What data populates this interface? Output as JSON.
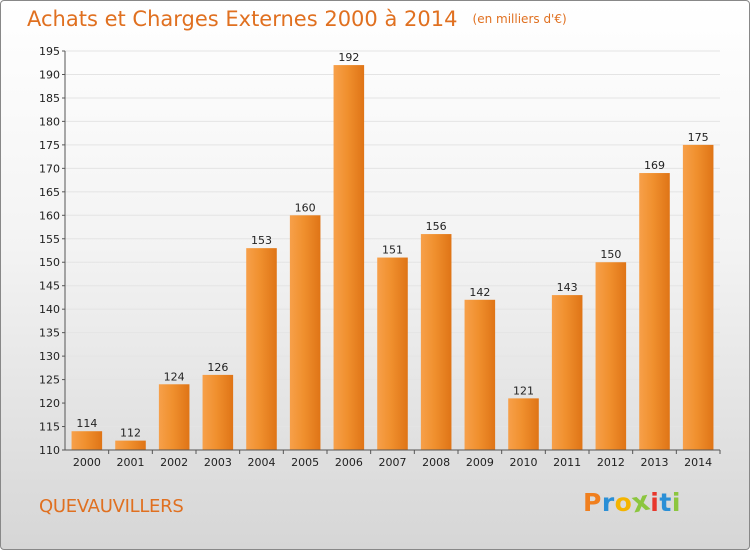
{
  "chart_data": {
    "type": "bar",
    "title": "Achats et Charges Externes 2000 à 2014",
    "unit": "(en milliers d'€)",
    "categories": [
      "2000",
      "2001",
      "2002",
      "2003",
      "2004",
      "2005",
      "2006",
      "2007",
      "2008",
      "2009",
      "2010",
      "2011",
      "2012",
      "2013",
      "2014"
    ],
    "values": [
      114,
      112,
      124,
      126,
      153,
      160,
      192,
      151,
      156,
      142,
      121,
      143,
      150,
      169,
      175
    ],
    "ylim": [
      110,
      195
    ],
    "ystep": 5,
    "grid": true,
    "bar_color": "#f0902e",
    "xlabel": "",
    "ylabel": ""
  },
  "commune": "QUEVAUVILLERS",
  "brand": {
    "letters": [
      "P",
      "r",
      "o",
      "x",
      "i",
      "t",
      "i"
    ],
    "colors": [
      "#f07f1e",
      "#2a8fd6",
      "#f4b400",
      "#8cc63f",
      "#e8372c",
      "#2a8fd6",
      "#8cc63f"
    ]
  }
}
